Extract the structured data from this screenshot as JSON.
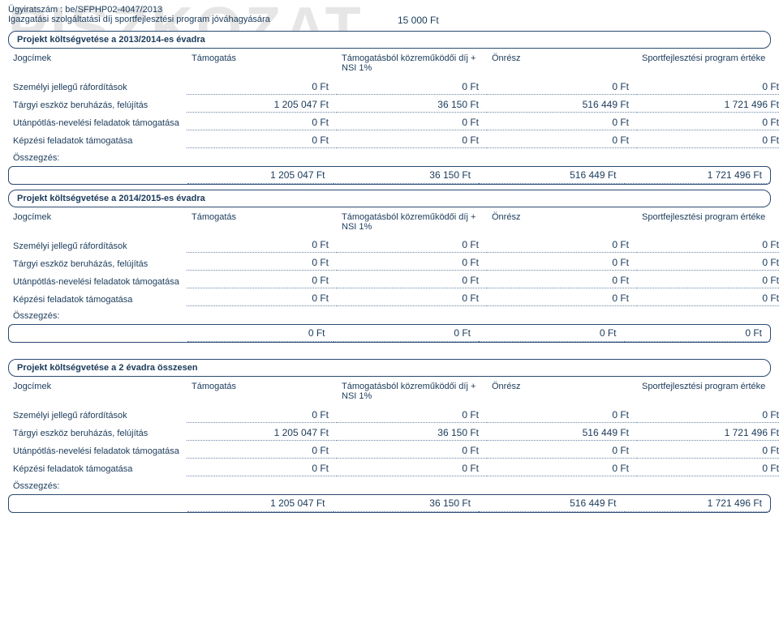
{
  "watermark_text": "PISZKOZAT",
  "colors": {
    "text": "#1a3a5a",
    "border": "#2a4a70",
    "dotted": "#6a88aa",
    "watermark": "#e6e6e6",
    "background": "#ffffff"
  },
  "header": {
    "doc_number_label": "Ügyiratszám : be/SFPHP02-4047/2013",
    "subtitle": "Igazgatási szolgáltatási díj sportfejlesztési program jóváhagyására",
    "fee": "15 000 Ft"
  },
  "columns": {
    "c0": "Jogcímek",
    "c1": "Támogatás",
    "c2": "Támogatásból közreműködői díj + NSI 1%",
    "c3": "Önrész",
    "c4": "Sportfejlesztési program értéke"
  },
  "row_labels": {
    "r0": "Személyi jellegű ráfordítások",
    "r1": "Tárgyi eszköz beruházás, felújítás",
    "r2": "Utánpótlás-nevelési feladatok támogatása",
    "r3": "Képzési feladatok támogatása"
  },
  "summary_label": "Összegzés:",
  "sections": [
    {
      "title": "Projekt költségvetése a 2013/2014-es évadra",
      "rows": [
        [
          "0 Ft",
          "0 Ft",
          "0 Ft",
          "0 Ft"
        ],
        [
          "1 205 047 Ft",
          "36 150 Ft",
          "516 449 Ft",
          "1 721 496 Ft"
        ],
        [
          "0 Ft",
          "0 Ft",
          "0 Ft",
          "0 Ft"
        ],
        [
          "0 Ft",
          "0 Ft",
          "0 Ft",
          "0 Ft"
        ]
      ],
      "summary": [
        "1 205 047 Ft",
        "36 150 Ft",
        "516 449 Ft",
        "1 721 496 Ft"
      ]
    },
    {
      "title": "Projekt költségvetése a 2014/2015-es évadra",
      "rows": [
        [
          "0 Ft",
          "0 Ft",
          "0 Ft",
          "0 Ft"
        ],
        [
          "0 Ft",
          "0 Ft",
          "0 Ft",
          "0 Ft"
        ],
        [
          "0 Ft",
          "0 Ft",
          "0 Ft",
          "0 Ft"
        ],
        [
          "0 Ft",
          "0 Ft",
          "0 Ft",
          "0 Ft"
        ]
      ],
      "summary": [
        "0 Ft",
        "0 Ft",
        "0 Ft",
        "0 Ft"
      ]
    },
    {
      "title": "Projekt költségvetése a 2 évadra összesen",
      "rows": [
        [
          "0 Ft",
          "0 Ft",
          "0 Ft",
          "0 Ft"
        ],
        [
          "1 205 047 Ft",
          "36 150 Ft",
          "516 449 Ft",
          "1 721 496 Ft"
        ],
        [
          "0 Ft",
          "0 Ft",
          "0 Ft",
          "0 Ft"
        ],
        [
          "0 Ft",
          "0 Ft",
          "0 Ft",
          "0 Ft"
        ]
      ],
      "summary": [
        "1 205 047 Ft",
        "36 150 Ft",
        "516 449 Ft",
        "1 721 496 Ft"
      ]
    }
  ]
}
